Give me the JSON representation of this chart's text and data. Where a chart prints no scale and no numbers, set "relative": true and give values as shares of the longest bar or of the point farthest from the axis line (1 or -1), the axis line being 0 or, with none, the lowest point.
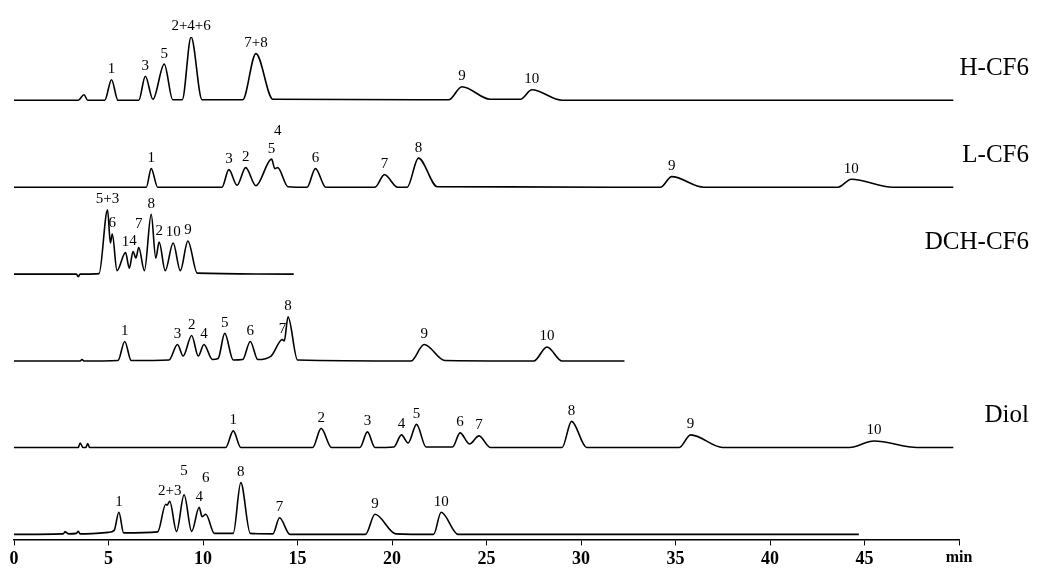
{
  "chart_data": {
    "type": "line",
    "relative": true,
    "marker": "none",
    "xlabel": "min",
    "xlim": [
      0,
      50
    ],
    "xticks": [
      0,
      5,
      10,
      15,
      20,
      25,
      30,
      35,
      40,
      45,
      {
        "value": 50,
        "label": null
      }
    ],
    "series": [
      {
        "name": "H-CF6",
        "color": "#000000",
        "x": [
          0,
          3.4,
          3.7,
          3.9,
          4.8,
          5.16,
          5.5,
          6.6,
          6.95,
          7.35,
          7.95,
          8.4,
          8.9,
          9.37,
          9.95,
          12.1,
          12.8,
          13.7,
          23.0,
          23.7,
          25.2,
          26.8,
          27.4,
          29.0,
          49.7
        ],
        "values": [
          0.874,
          0.874,
          0.885,
          0.874,
          0.874,
          0.915,
          0.874,
          0.874,
          0.922,
          0.876,
          0.946,
          0.875,
          0.875,
          1.0,
          0.875,
          0.875,
          0.967,
          0.876,
          0.875,
          0.901,
          0.876,
          0.876,
          0.895,
          0.874,
          0.874
        ]
      },
      {
        "name": "L-CF6",
        "color": "#000000",
        "x": [
          0,
          7.0,
          7.26,
          7.6,
          11.0,
          11.37,
          11.8,
          12.26,
          12.8,
          13.63,
          13.8,
          13.95,
          14.5,
          15.5,
          15.95,
          16.5,
          19.1,
          19.6,
          20.3,
          20.8,
          21.4,
          22.4,
          34.2,
          34.8,
          36.5,
          43.6,
          44.3,
          46.5,
          49.7
        ],
        "values": [
          0.701,
          0.701,
          0.738,
          0.701,
          0.701,
          0.736,
          0.705,
          0.74,
          0.704,
          0.757,
          0.738,
          0.74,
          0.702,
          0.701,
          0.738,
          0.701,
          0.701,
          0.726,
          0.701,
          0.701,
          0.759,
          0.702,
          0.701,
          0.722,
          0.701,
          0.701,
          0.717,
          0.701,
          0.701
        ]
      },
      {
        "name": "DCH-CF6",
        "color": "#000000",
        "x": [
          0,
          3.3,
          3.4,
          3.5,
          4.5,
          4.95,
          5.1,
          5.2,
          5.45,
          5.9,
          6.1,
          6.3,
          6.45,
          6.6,
          6.9,
          7.26,
          7.5,
          7.68,
          8.0,
          8.42,
          8.8,
          9.2,
          9.7,
          14.8
        ],
        "values": [
          0.528,
          0.528,
          0.523,
          0.528,
          0.529,
          0.656,
          0.59,
          0.608,
          0.535,
          0.571,
          0.54,
          0.573,
          0.56,
          0.581,
          0.535,
          0.647,
          0.56,
          0.592,
          0.535,
          0.59,
          0.535,
          0.594,
          0.53,
          0.528
        ]
      },
      {
        "color": "#000000",
        "x": [
          0,
          3.5,
          3.6,
          3.7,
          5.5,
          5.86,
          6.2,
          8.2,
          8.65,
          8.95,
          9.4,
          9.75,
          10.05,
          10.5,
          10.8,
          11.15,
          11.6,
          12.1,
          12.5,
          12.9,
          13.6,
          14.2,
          14.3,
          14.5,
          15.0,
          21.0,
          21.7,
          22.8,
          27.5,
          28.2,
          29.0,
          32.3
        ],
        "values": [
          0.355,
          0.355,
          0.358,
          0.355,
          0.356,
          0.394,
          0.356,
          0.357,
          0.388,
          0.365,
          0.406,
          0.365,
          0.388,
          0.358,
          0.36,
          0.41,
          0.357,
          0.358,
          0.394,
          0.358,
          0.365,
          0.398,
          0.395,
          0.443,
          0.357,
          0.355,
          0.388,
          0.356,
          0.355,
          0.383,
          0.355,
          0.355
        ]
      },
      {
        "name": "Diol",
        "color": "#000000",
        "x": [
          0,
          3.4,
          3.5,
          3.65,
          3.8,
          3.9,
          4.0,
          11.2,
          11.6,
          12.0,
          15.8,
          16.25,
          16.8,
          18.3,
          18.7,
          19.1,
          20.1,
          20.5,
          20.85,
          21.3,
          21.8,
          23.2,
          23.6,
          24.1,
          24.6,
          25.2,
          29.0,
          29.5,
          30.3,
          35.2,
          35.8,
          37.5,
          44.2,
          45.5,
          47.8,
          49.7
        ],
        "values": [
          0.183,
          0.183,
          0.192,
          0.183,
          0.183,
          0.191,
          0.183,
          0.183,
          0.216,
          0.183,
          0.183,
          0.221,
          0.183,
          0.183,
          0.214,
          0.183,
          0.184,
          0.208,
          0.192,
          0.229,
          0.184,
          0.184,
          0.212,
          0.19,
          0.206,
          0.183,
          0.183,
          0.235,
          0.183,
          0.183,
          0.208,
          0.183,
          0.183,
          0.196,
          0.183,
          0.183
        ]
      },
      {
        "color": "#000000",
        "x": [
          0,
          2.6,
          2.7,
          2.9,
          3.3,
          3.4,
          3.5,
          5.0,
          5.3,
          5.55,
          5.8,
          7.6,
          8.03,
          8.1,
          8.24,
          8.6,
          9.0,
          9.4,
          9.8,
          9.95,
          10.15,
          10.6,
          11.6,
          12.0,
          12.5,
          13.7,
          14.05,
          14.6,
          18.6,
          19.1,
          20.2,
          22.2,
          22.6,
          23.5,
          44.7
        ],
        "values": [
          0.01,
          0.011,
          0.015,
          0.011,
          0.012,
          0.016,
          0.011,
          0.014,
          0.018,
          0.054,
          0.013,
          0.015,
          0.07,
          0.068,
          0.076,
          0.016,
          0.089,
          0.016,
          0.064,
          0.045,
          0.05,
          0.012,
          0.012,
          0.113,
          0.012,
          0.011,
          0.043,
          0.01,
          0.01,
          0.05,
          0.011,
          0.01,
          0.054,
          0.01,
          0.01
        ]
      }
    ],
    "annotations": [
      {
        "text": "1",
        "x": 5.16,
        "y": 0.915
      },
      {
        "text": "3",
        "x": 6.95,
        "y": 0.922
      },
      {
        "text": "5",
        "x": 7.95,
        "y": 0.946
      },
      {
        "text": "2+4+6",
        "x": 9.37,
        "y": 1.0
      },
      {
        "text": "7+8",
        "x": 12.8,
        "y": 0.967
      },
      {
        "text": "9",
        "x": 23.7,
        "y": 0.901
      },
      {
        "text": "10",
        "x": 27.4,
        "y": 0.895
      },
      {
        "text": "1",
        "x": 7.26,
        "y": 0.738
      },
      {
        "text": "3",
        "x": 11.37,
        "y": 0.736
      },
      {
        "text": "2",
        "x": 12.26,
        "y": 0.74
      },
      {
        "text": "5",
        "x": 13.63,
        "y": 0.757
      },
      {
        "text": "4",
        "x": 13.95,
        "y": 0.74
      },
      {
        "text": "6",
        "x": 15.95,
        "y": 0.738
      },
      {
        "text": "7",
        "x": 19.6,
        "y": 0.726
      },
      {
        "text": "8",
        "x": 21.4,
        "y": 0.759
      },
      {
        "text": "9",
        "x": 34.8,
        "y": 0.722
      },
      {
        "text": "10",
        "x": 44.3,
        "y": 0.717
      },
      {
        "text": "5+3",
        "x": 4.95,
        "y": 0.656
      },
      {
        "text": "6",
        "x": 5.2,
        "y": 0.608
      },
      {
        "text": "1",
        "x": 5.9,
        "y": 0.571
      },
      {
        "text": "4",
        "x": 6.3,
        "y": 0.573
      },
      {
        "text": "7",
        "x": 6.6,
        "y": 0.581
      },
      {
        "text": "8",
        "x": 7.26,
        "y": 0.647
      },
      {
        "text": "2",
        "x": 7.68,
        "y": 0.592
      },
      {
        "text": "10",
        "x": 8.42,
        "y": 0.59
      },
      {
        "text": "9",
        "x": 9.2,
        "y": 0.594
      },
      {
        "text": "1",
        "x": 5.86,
        "y": 0.394
      },
      {
        "text": "3",
        "x": 8.65,
        "y": 0.388
      },
      {
        "text": "2",
        "x": 9.4,
        "y": 0.406
      },
      {
        "text": "4",
        "x": 10.05,
        "y": 0.388
      },
      {
        "text": "5",
        "x": 11.15,
        "y": 0.41
      },
      {
        "text": "6",
        "x": 12.5,
        "y": 0.394
      },
      {
        "text": "7",
        "x": 14.2,
        "y": 0.398
      },
      {
        "text": "8",
        "x": 14.5,
        "y": 0.443
      },
      {
        "text": "9",
        "x": 21.7,
        "y": 0.388
      },
      {
        "text": "10",
        "x": 28.2,
        "y": 0.383
      },
      {
        "text": "1",
        "x": 11.6,
        "y": 0.216
      },
      {
        "text": "2",
        "x": 16.25,
        "y": 0.221
      },
      {
        "text": "3",
        "x": 18.7,
        "y": 0.214
      },
      {
        "text": "4",
        "x": 20.5,
        "y": 0.208
      },
      {
        "text": "5",
        "x": 21.3,
        "y": 0.229
      },
      {
        "text": "6",
        "x": 23.6,
        "y": 0.212
      },
      {
        "text": "7",
        "x": 24.6,
        "y": 0.206
      },
      {
        "text": "8",
        "x": 29.5,
        "y": 0.235
      },
      {
        "text": "9",
        "x": 35.8,
        "y": 0.208
      },
      {
        "text": "10",
        "x": 45.5,
        "y": 0.196
      },
      {
        "text": "1",
        "x": 5.55,
        "y": 0.054
      },
      {
        "text": "2+3",
        "x": 8.24,
        "y": 0.076
      },
      {
        "text": "5",
        "x": 9.0,
        "y": 0.089
      },
      {
        "text": "4",
        "x": 9.8,
        "y": 0.064
      },
      {
        "text": "6",
        "x": 10.15,
        "y": 0.05
      },
      {
        "text": "8",
        "x": 12.0,
        "y": 0.113
      },
      {
        "text": "7",
        "x": 14.05,
        "y": 0.043
      },
      {
        "text": "9",
        "x": 19.1,
        "y": 0.05
      },
      {
        "text": "10",
        "x": 22.6,
        "y": 0.054
      }
    ]
  }
}
